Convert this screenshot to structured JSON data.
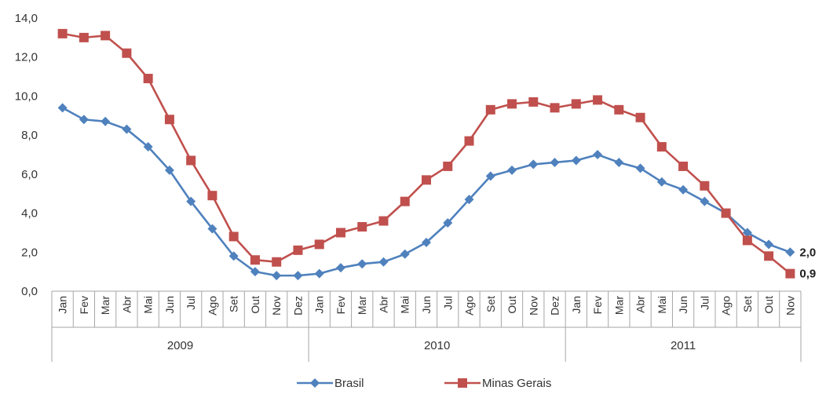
{
  "chart_data": {
    "type": "line",
    "title": "",
    "xlabel": "",
    "ylabel": "",
    "ylim": [
      0,
      14
    ],
    "y_ticks": [
      "0,0",
      "2,0",
      "4,0",
      "6,0",
      "8,0",
      "10,0",
      "12,0",
      "14,0"
    ],
    "grid": false,
    "legend_position": "bottom",
    "categories": [
      "Jan",
      "Fev",
      "Mar",
      "Abr",
      "Mai",
      "Jun",
      "Jul",
      "Ago",
      "Set",
      "Out",
      "Nov",
      "Dez",
      "Jan",
      "Fev",
      "Mar",
      "Abr",
      "Mai",
      "Jun",
      "Jul",
      "Ago",
      "Set",
      "Out",
      "Nov",
      "Dez",
      "Jan",
      "Fev",
      "Mar",
      "Abr",
      "Mai",
      "Jun",
      "Jul",
      "Ago",
      "Set",
      "Out",
      "Nov"
    ],
    "year_groups": [
      {
        "label": "2009",
        "count": 12
      },
      {
        "label": "2010",
        "count": 12
      },
      {
        "label": "2011",
        "count": 11
      }
    ],
    "series": [
      {
        "name": "Brasil",
        "color": "#4f81bd",
        "marker": "diamond",
        "values": [
          9.4,
          8.8,
          8.7,
          8.3,
          7.4,
          6.2,
          4.6,
          3.2,
          1.8,
          1.0,
          0.8,
          0.8,
          0.9,
          1.2,
          1.4,
          1.5,
          1.9,
          2.5,
          3.5,
          4.7,
          5.9,
          6.2,
          6.5,
          6.6,
          6.7,
          7.0,
          6.6,
          6.3,
          5.6,
          5.2,
          4.6,
          4.0,
          3.0,
          2.4,
          2.0
        ],
        "end_label": "2,0"
      },
      {
        "name": "Minas Gerais",
        "color": "#c0504d",
        "marker": "square",
        "values": [
          13.2,
          13.0,
          13.1,
          12.2,
          10.9,
          8.8,
          6.7,
          4.9,
          2.8,
          1.6,
          1.5,
          2.1,
          2.4,
          3.0,
          3.3,
          3.6,
          4.6,
          5.7,
          6.4,
          7.7,
          9.3,
          9.6,
          9.7,
          9.4,
          9.6,
          9.8,
          9.3,
          8.9,
          7.4,
          6.4,
          5.4,
          4.0,
          2.6,
          1.8,
          0.9
        ],
        "end_label": "0,9"
      }
    ]
  }
}
